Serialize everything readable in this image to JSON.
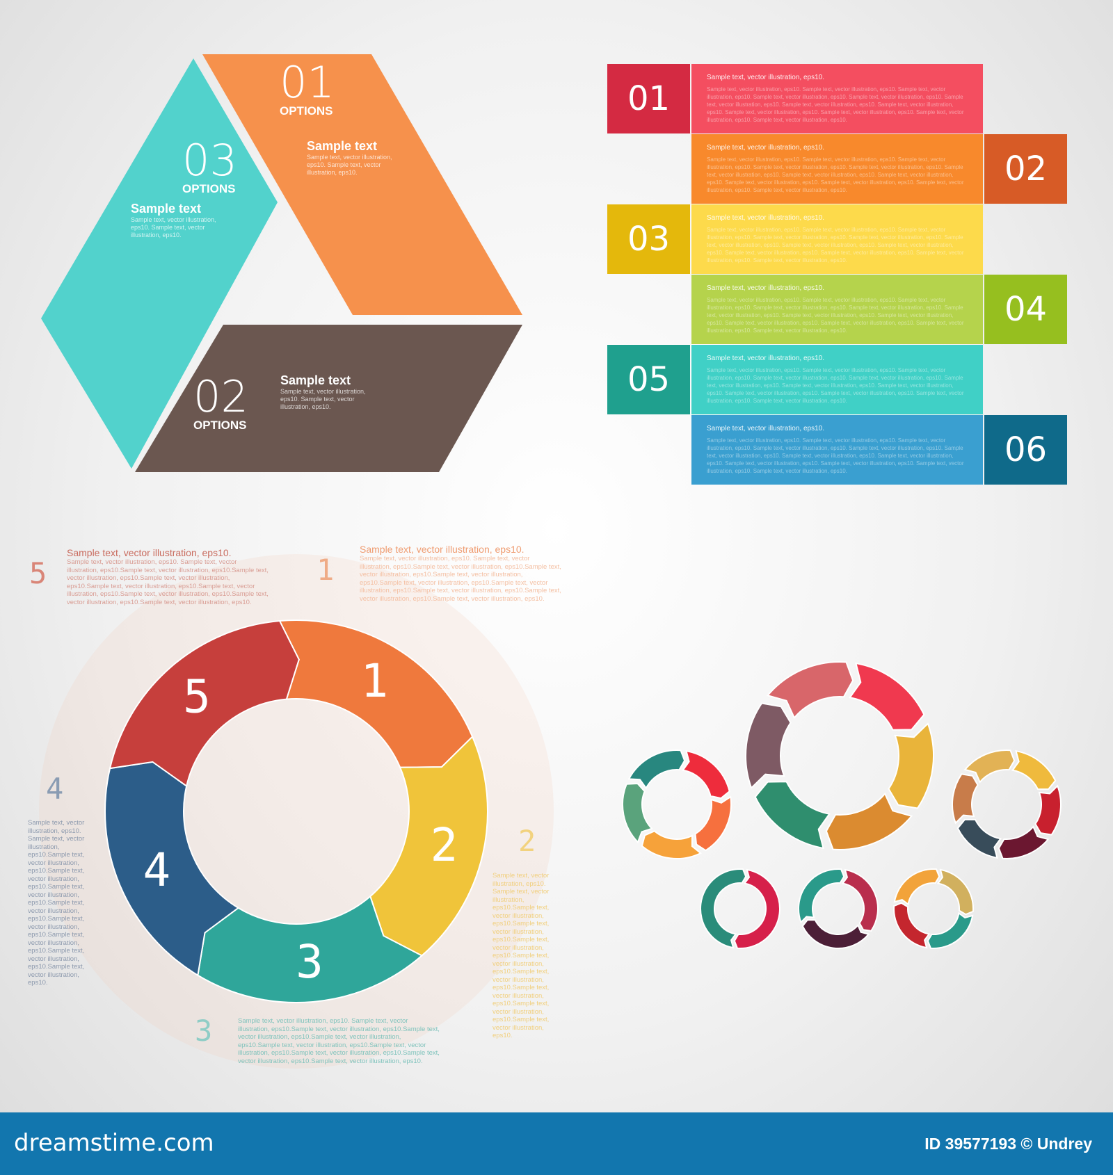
{
  "hexagon": {
    "segments": [
      {
        "number": "01",
        "options": "OPTIONS",
        "title": "Sample text",
        "body": "Sample text, vector illustration, eps10. Sample text, vector illustration, eps10.",
        "color": "#f6914c"
      },
      {
        "number": "02",
        "options": "OPTIONS",
        "title": "Sample text",
        "body": "Sample text, vector illustration, eps10. Sample text, vector illustration, eps10.",
        "color": "#6b5750"
      },
      {
        "number": "03",
        "options": "OPTIONS",
        "title": "Sample text",
        "body": "Sample text, vector illustration, eps10. Sample text, vector illustration, eps10.",
        "color": "#52d2cc"
      }
    ]
  },
  "bars": {
    "heading": "Sample text, vector illustration, eps10.",
    "body": "Sample text, vector illustration, eps10. Sample text, vector illustration, eps10. Sample text, vector illustration, eps10. Sample text, vector illustration, eps10. Sample text, vector illustration, eps10. Sample text, vector illustration, eps10. Sample text, vector illustration, eps10. Sample text, vector illustration, eps10. Sample text, vector illustration, eps10. Sample text, vector illustration, eps10. Sample text, vector illustration, eps10. Sample text, vector illustration, eps10.",
    "rows": [
      {
        "number": "01",
        "side": "left",
        "bar": "#f44e60",
        "box": "#d42a42"
      },
      {
        "number": "02",
        "side": "right",
        "bar": "#f8892c",
        "box": "#d75b26"
      },
      {
        "number": "03",
        "side": "left",
        "bar": "#fdda4b",
        "box": "#e4b80c"
      },
      {
        "number": "04",
        "side": "right",
        "bar": "#b5d34c",
        "box": "#96bf1f"
      },
      {
        "number": "05",
        "side": "left",
        "bar": "#40d0c6",
        "box": "#1fa08e"
      },
      {
        "number": "06",
        "side": "right",
        "bar": "#3a9fd0",
        "box": "#0f6a8a"
      }
    ]
  },
  "cycle": {
    "heading": "Sample text, vector illustration, eps10.",
    "body": "Sample text, vector illustration, eps10. Sample text, vector illustration, eps10.Sample text, vector illustration, eps10.Sample text, vector illustration, eps10.Sample text, vector illustration, eps10.Sample text, vector illustration, eps10.Sample text, vector illustration, eps10.Sample text, vector illustration, eps10.Sample text, vector illustration, eps10.Sample text, vector illustration, eps10.",
    "segments": [
      {
        "label": "1",
        "color": "#ef793d"
      },
      {
        "label": "2",
        "color": "#f0c43a"
      },
      {
        "label": "3",
        "color": "#2fa69a"
      },
      {
        "label": "4",
        "color": "#2c5d89"
      },
      {
        "label": "5",
        "color": "#c63f3c"
      }
    ]
  },
  "footer": {
    "brand": "dreamstime.com",
    "credit": "ID 39577193 © Undrey"
  }
}
